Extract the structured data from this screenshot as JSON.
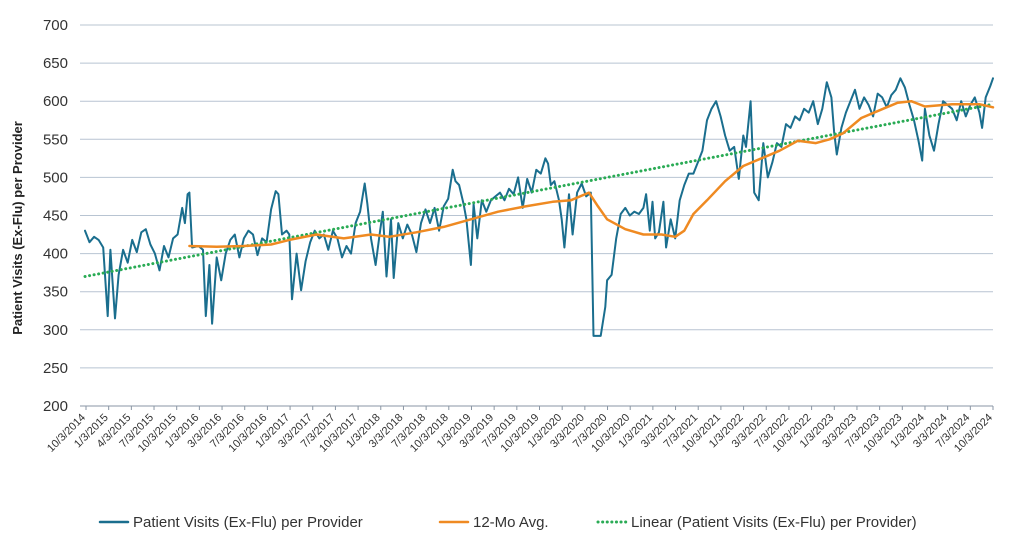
{
  "chart_data": {
    "type": "line",
    "title": "",
    "xlabel": "",
    "ylabel": "Patient Visits (Ex-Flu) per Provider",
    "ylim": [
      200,
      700
    ],
    "y_ticks": [
      200,
      250,
      300,
      350,
      400,
      450,
      500,
      550,
      600,
      650,
      700
    ],
    "x_tick_labels": [
      "10/3/2014",
      "1/3/2015",
      "4/3/2015",
      "7/3/2015",
      "10/3/2015",
      "1/3/2016",
      "3/3/2016",
      "7/3/2016",
      "10/3/2016",
      "1/3/2017",
      "3/3/2017",
      "7/3/2017",
      "10/3/2017",
      "1/3/2018",
      "3/3/2018",
      "7/3/2018",
      "10/3/2018",
      "1/3/2019",
      "3/3/2019",
      "7/3/2019",
      "10/3/2019",
      "1/3/2020",
      "3/3/2020",
      "7/3/2020",
      "10/3/2020",
      "1/3/2021",
      "3/3/2021",
      "7/3/2021",
      "10/3/2021",
      "1/3/2022",
      "3/3/2022",
      "7/3/2022",
      "10/3/2022",
      "1/3/2023",
      "3/3/2023",
      "7/3/2023",
      "10/3/2023",
      "1/3/2024",
      "3/3/2024",
      "7/3/2024",
      "10/3/2024"
    ],
    "grid": true,
    "legend_position": "bottom",
    "x_range": [
      2014.75,
      2024.75
    ],
    "series": [
      {
        "name": "Patient Visits (Ex-Flu) per Provider",
        "color": "#1a6e8e",
        "style": "solid",
        "points": [
          [
            2014.75,
            430
          ],
          [
            2014.8,
            415
          ],
          [
            2014.85,
            422
          ],
          [
            2014.9,
            418
          ],
          [
            2014.95,
            408
          ],
          [
            2015.0,
            318
          ],
          [
            2015.03,
            405
          ],
          [
            2015.08,
            315
          ],
          [
            2015.12,
            372
          ],
          [
            2015.17,
            405
          ],
          [
            2015.22,
            388
          ],
          [
            2015.27,
            418
          ],
          [
            2015.32,
            402
          ],
          [
            2015.37,
            428
          ],
          [
            2015.42,
            432
          ],
          [
            2015.47,
            412
          ],
          [
            2015.52,
            400
          ],
          [
            2015.57,
            378
          ],
          [
            2015.62,
            410
          ],
          [
            2015.67,
            395
          ],
          [
            2015.72,
            420
          ],
          [
            2015.77,
            425
          ],
          [
            2015.82,
            460
          ],
          [
            2015.85,
            440
          ],
          [
            2015.88,
            478
          ],
          [
            2015.9,
            480
          ],
          [
            2015.93,
            408
          ],
          [
            2016.0,
            410
          ],
          [
            2016.05,
            405
          ],
          [
            2016.08,
            318
          ],
          [
            2016.12,
            385
          ],
          [
            2016.15,
            308
          ],
          [
            2016.2,
            395
          ],
          [
            2016.25,
            365
          ],
          [
            2016.3,
            400
          ],
          [
            2016.35,
            418
          ],
          [
            2016.4,
            425
          ],
          [
            2016.45,
            395
          ],
          [
            2016.5,
            420
          ],
          [
            2016.55,
            430
          ],
          [
            2016.6,
            425
          ],
          [
            2016.65,
            398
          ],
          [
            2016.7,
            420
          ],
          [
            2016.75,
            415
          ],
          [
            2016.8,
            458
          ],
          [
            2016.85,
            482
          ],
          [
            2016.88,
            478
          ],
          [
            2016.92,
            425
          ],
          [
            2016.97,
            430
          ],
          [
            2017.0,
            425
          ],
          [
            2017.03,
            340
          ],
          [
            2017.08,
            400
          ],
          [
            2017.13,
            352
          ],
          [
            2017.18,
            390
          ],
          [
            2017.23,
            415
          ],
          [
            2017.28,
            430
          ],
          [
            2017.33,
            420
          ],
          [
            2017.38,
            425
          ],
          [
            2017.43,
            405
          ],
          [
            2017.48,
            430
          ],
          [
            2017.53,
            420
          ],
          [
            2017.58,
            395
          ],
          [
            2017.63,
            410
          ],
          [
            2017.68,
            400
          ],
          [
            2017.73,
            440
          ],
          [
            2017.78,
            455
          ],
          [
            2017.83,
            492
          ],
          [
            2017.86,
            465
          ],
          [
            2017.9,
            420
          ],
          [
            2017.95,
            385
          ],
          [
            2018.0,
            430
          ],
          [
            2018.03,
            455
          ],
          [
            2018.07,
            370
          ],
          [
            2018.12,
            445
          ],
          [
            2018.15,
            368
          ],
          [
            2018.2,
            440
          ],
          [
            2018.25,
            420
          ],
          [
            2018.3,
            438
          ],
          [
            2018.35,
            425
          ],
          [
            2018.4,
            402
          ],
          [
            2018.45,
            440
          ],
          [
            2018.5,
            458
          ],
          [
            2018.55,
            440
          ],
          [
            2018.6,
            460
          ],
          [
            2018.65,
            430
          ],
          [
            2018.7,
            462
          ],
          [
            2018.75,
            472
          ],
          [
            2018.8,
            510
          ],
          [
            2018.83,
            495
          ],
          [
            2018.87,
            490
          ],
          [
            2018.92,
            465
          ],
          [
            2018.95,
            445
          ],
          [
            2019.0,
            385
          ],
          [
            2019.03,
            465
          ],
          [
            2019.07,
            420
          ],
          [
            2019.12,
            470
          ],
          [
            2019.17,
            455
          ],
          [
            2019.22,
            470
          ],
          [
            2019.27,
            475
          ],
          [
            2019.32,
            480
          ],
          [
            2019.37,
            470
          ],
          [
            2019.42,
            485
          ],
          [
            2019.47,
            478
          ],
          [
            2019.52,
            500
          ],
          [
            2019.57,
            460
          ],
          [
            2019.62,
            498
          ],
          [
            2019.67,
            480
          ],
          [
            2019.72,
            510
          ],
          [
            2019.77,
            505
          ],
          [
            2019.82,
            525
          ],
          [
            2019.85,
            518
          ],
          [
            2019.88,
            490
          ],
          [
            2019.92,
            495
          ],
          [
            2019.97,
            470
          ],
          [
            2020.0,
            445
          ],
          [
            2020.03,
            408
          ],
          [
            2020.08,
            478
          ],
          [
            2020.12,
            425
          ],
          [
            2020.17,
            480
          ],
          [
            2020.22,
            492
          ],
          [
            2020.27,
            475
          ],
          [
            2020.32,
            480
          ],
          [
            2020.35,
            292
          ],
          [
            2020.38,
            292
          ],
          [
            2020.43,
            292
          ],
          [
            2020.48,
            330
          ],
          [
            2020.5,
            365
          ],
          [
            2020.55,
            372
          ],
          [
            2020.6,
            420
          ],
          [
            2020.65,
            452
          ],
          [
            2020.7,
            460
          ],
          [
            2020.75,
            450
          ],
          [
            2020.8,
            455
          ],
          [
            2020.85,
            452
          ],
          [
            2020.9,
            460
          ],
          [
            2020.93,
            478
          ],
          [
            2020.97,
            430
          ],
          [
            2021.0,
            468
          ],
          [
            2021.03,
            420
          ],
          [
            2021.07,
            428
          ],
          [
            2021.12,
            468
          ],
          [
            2021.15,
            408
          ],
          [
            2021.2,
            445
          ],
          [
            2021.25,
            420
          ],
          [
            2021.3,
            470
          ],
          [
            2021.35,
            490
          ],
          [
            2021.4,
            505
          ],
          [
            2021.45,
            505
          ],
          [
            2021.5,
            520
          ],
          [
            2021.55,
            535
          ],
          [
            2021.6,
            575
          ],
          [
            2021.65,
            590
          ],
          [
            2021.7,
            600
          ],
          [
            2021.75,
            580
          ],
          [
            2021.8,
            555
          ],
          [
            2021.85,
            535
          ],
          [
            2021.9,
            540
          ],
          [
            2021.95,
            498
          ],
          [
            2022.0,
            555
          ],
          [
            2022.03,
            540
          ],
          [
            2022.08,
            600
          ],
          [
            2022.12,
            480
          ],
          [
            2022.17,
            470
          ],
          [
            2022.22,
            545
          ],
          [
            2022.27,
            500
          ],
          [
            2022.32,
            520
          ],
          [
            2022.37,
            545
          ],
          [
            2022.42,
            540
          ],
          [
            2022.47,
            570
          ],
          [
            2022.52,
            565
          ],
          [
            2022.57,
            580
          ],
          [
            2022.62,
            575
          ],
          [
            2022.67,
            590
          ],
          [
            2022.72,
            585
          ],
          [
            2022.77,
            600
          ],
          [
            2022.82,
            570
          ],
          [
            2022.87,
            590
          ],
          [
            2022.92,
            625
          ],
          [
            2022.97,
            605
          ],
          [
            2023.0,
            560
          ],
          [
            2023.03,
            530
          ],
          [
            2023.08,
            565
          ],
          [
            2023.13,
            585
          ],
          [
            2023.18,
            600
          ],
          [
            2023.23,
            615
          ],
          [
            2023.28,
            590
          ],
          [
            2023.33,
            605
          ],
          [
            2023.38,
            595
          ],
          [
            2023.43,
            580
          ],
          [
            2023.48,
            610
          ],
          [
            2023.53,
            605
          ],
          [
            2023.58,
            592
          ],
          [
            2023.63,
            608
          ],
          [
            2023.68,
            615
          ],
          [
            2023.73,
            630
          ],
          [
            2023.78,
            618
          ],
          [
            2023.83,
            595
          ],
          [
            2023.88,
            575
          ],
          [
            2023.93,
            548
          ],
          [
            2023.97,
            522
          ],
          [
            2024.0,
            590
          ],
          [
            2024.05,
            555
          ],
          [
            2024.1,
            535
          ],
          [
            2024.15,
            570
          ],
          [
            2024.2,
            600
          ],
          [
            2024.25,
            595
          ],
          [
            2024.3,
            590
          ],
          [
            2024.35,
            575
          ],
          [
            2024.4,
            600
          ],
          [
            2024.45,
            580
          ],
          [
            2024.5,
            595
          ],
          [
            2024.55,
            605
          ],
          [
            2024.6,
            585
          ],
          [
            2024.63,
            565
          ],
          [
            2024.67,
            605
          ],
          [
            2024.72,
            620
          ],
          [
            2024.75,
            630
          ]
        ]
      },
      {
        "name": "12-Mo Avg.",
        "color": "#ef8a22",
        "style": "solid",
        "points": [
          [
            2015.9,
            410
          ],
          [
            2016.2,
            409
          ],
          [
            2016.5,
            410
          ],
          [
            2016.8,
            412
          ],
          [
            2017.0,
            418
          ],
          [
            2017.3,
            425
          ],
          [
            2017.6,
            420
          ],
          [
            2017.9,
            425
          ],
          [
            2018.1,
            422
          ],
          [
            2018.4,
            428
          ],
          [
            2018.7,
            435
          ],
          [
            2019.0,
            445
          ],
          [
            2019.3,
            455
          ],
          [
            2019.6,
            462
          ],
          [
            2019.9,
            468
          ],
          [
            2020.1,
            470
          ],
          [
            2020.3,
            480
          ],
          [
            2020.4,
            462
          ],
          [
            2020.5,
            445
          ],
          [
            2020.7,
            432
          ],
          [
            2020.9,
            425
          ],
          [
            2021.1,
            425
          ],
          [
            2021.25,
            422
          ],
          [
            2021.35,
            430
          ],
          [
            2021.45,
            452
          ],
          [
            2021.6,
            470
          ],
          [
            2021.8,
            495
          ],
          [
            2022.0,
            515
          ],
          [
            2022.2,
            525
          ],
          [
            2022.4,
            535
          ],
          [
            2022.6,
            548
          ],
          [
            2022.8,
            545
          ],
          [
            2022.95,
            550
          ],
          [
            2023.1,
            558
          ],
          [
            2023.3,
            578
          ],
          [
            2023.5,
            588
          ],
          [
            2023.7,
            598
          ],
          [
            2023.85,
            600
          ],
          [
            2024.0,
            593
          ],
          [
            2024.3,
            596
          ],
          [
            2024.6,
            596
          ],
          [
            2024.75,
            592
          ]
        ]
      },
      {
        "name": "Linear (Patient Visits (Ex-Flu) per Provider)",
        "color": "#2aab55",
        "style": "dotted",
        "points": [
          [
            2014.75,
            370
          ],
          [
            2024.75,
            596
          ]
        ]
      }
    ]
  }
}
